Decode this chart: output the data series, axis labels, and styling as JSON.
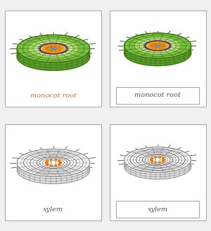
{
  "bg_color": "#f0f0f0",
  "card_bg": "#ffffff",
  "card_border": "#aaaaaa",
  "labels": {
    "top_left": "monocot root",
    "top_right": "monocot root",
    "bottom_left": "xylem",
    "bottom_right": "xylem"
  },
  "label_color_orange": "#cc7733",
  "label_color_gray": "#555555",
  "green_dark": "#3a7a18",
  "green_mid": "#5a9e28",
  "green_bright": "#7cc040",
  "green_light": "#a8d860",
  "green_pale": "#c8e890",
  "yellow_center": "#d4aa20",
  "orange_dots": "#ee7700",
  "gray_center": "#888888",
  "blue_ring": "#1133bb",
  "red_ring": "#cc1111",
  "grid_green": "#2a6010",
  "grid_gray": "#666666",
  "hair_green": "#336610",
  "hair_gray": "#555555"
}
